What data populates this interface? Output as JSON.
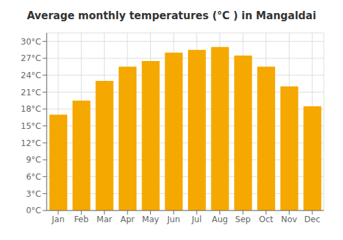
{
  "chart_data": {
    "type": "bar",
    "title": "Average monthly temperatures (°C ) in Mangaldai",
    "categories": [
      "Jan",
      "Feb",
      "Mar",
      "Apr",
      "May",
      "Jun",
      "Jul",
      "Aug",
      "Sep",
      "Oct",
      "Nov",
      "Dec"
    ],
    "values": [
      17,
      19.5,
      23,
      25.5,
      26.5,
      28,
      28.5,
      29,
      27.5,
      25.5,
      22,
      18.5
    ],
    "color": "#F5A800",
    "ylim": [
      0,
      31.5
    ],
    "yticks": [
      {
        "value": 0,
        "label": "0°C"
      },
      {
        "value": 3,
        "label": "3°C"
      },
      {
        "value": 6,
        "label": "6°C"
      },
      {
        "value": 9,
        "label": "9°C"
      },
      {
        "value": 12,
        "label": "12°C"
      },
      {
        "value": 15,
        "label": "15°C"
      },
      {
        "value": 18,
        "label": "18°C"
      },
      {
        "value": 21,
        "label": "21°C"
      },
      {
        "value": 24,
        "label": "24°C"
      },
      {
        "value": 27,
        "label": "27°C"
      },
      {
        "value": 30,
        "label": "30°C"
      }
    ],
    "grid": true
  }
}
